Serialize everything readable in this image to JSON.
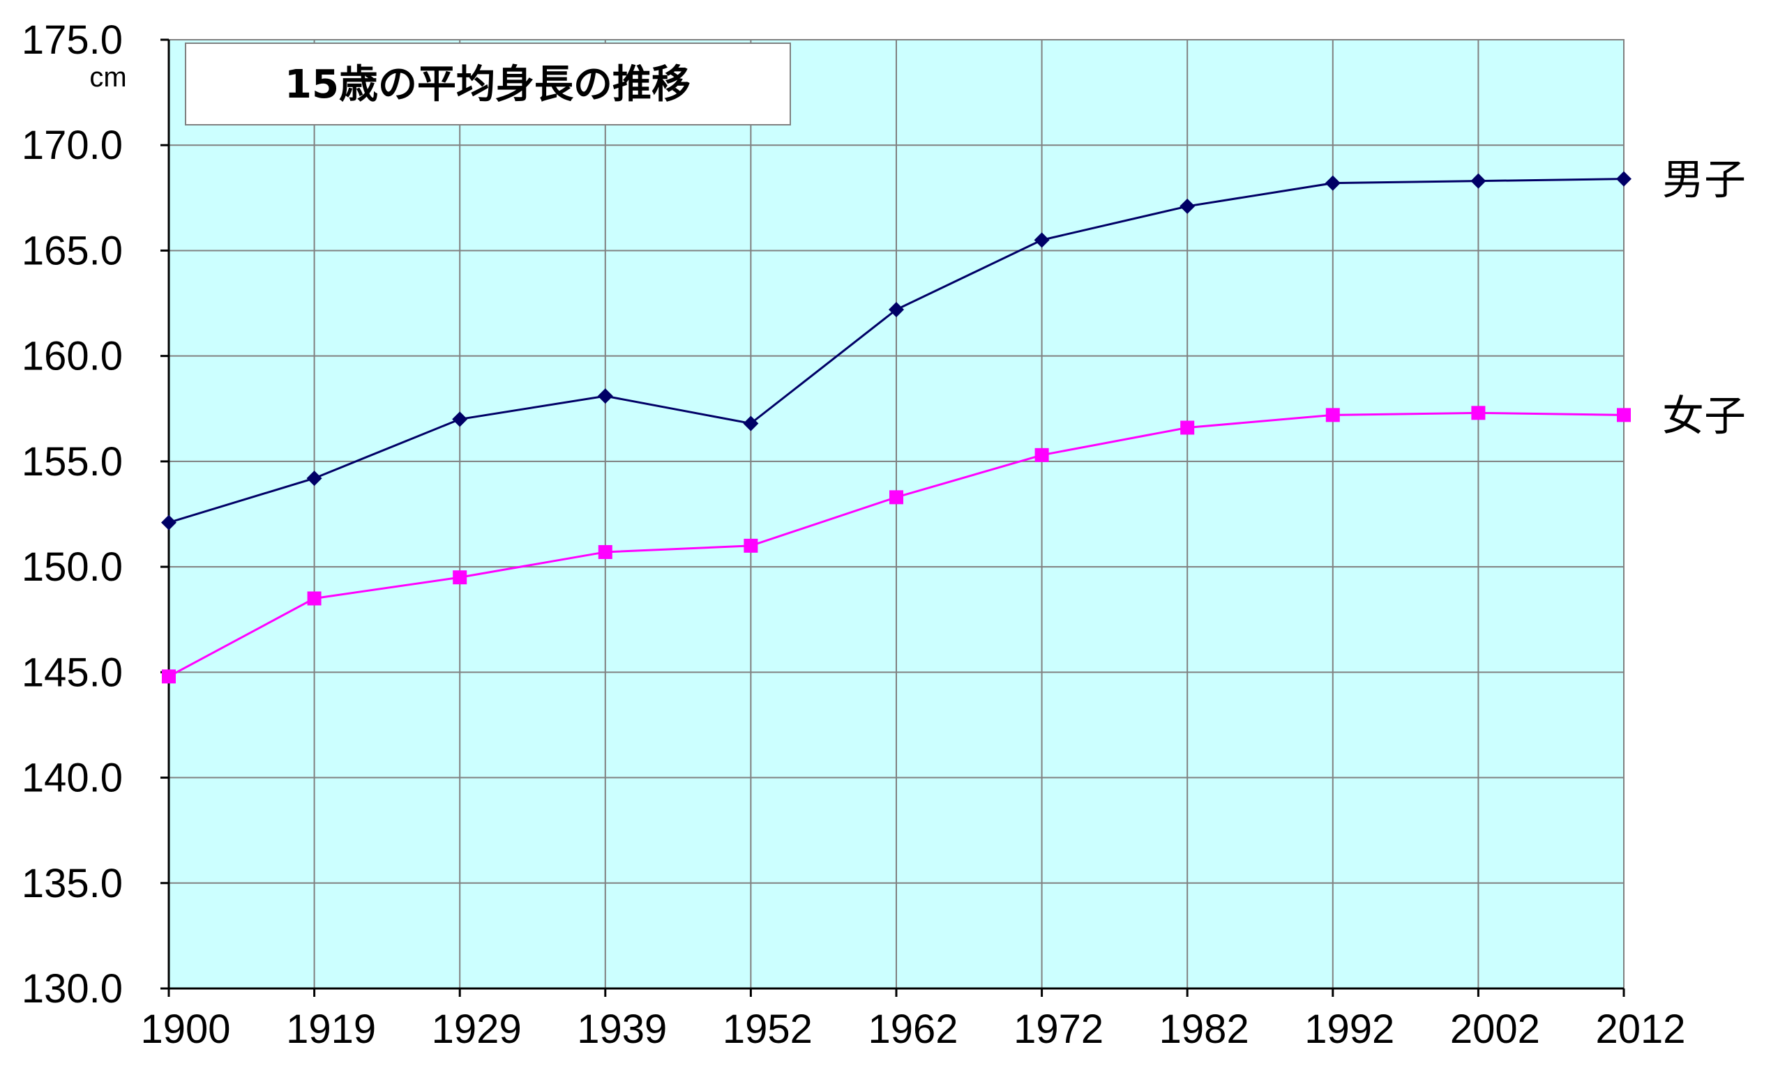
{
  "chart_data": {
    "type": "line",
    "title": "15歳の平均身長の推移",
    "unit": "cm",
    "x": [
      "1900",
      "1919",
      "1929",
      "1939",
      "1952",
      "1962",
      "1972",
      "1982",
      "1992",
      "2002",
      "2012"
    ],
    "series": [
      {
        "name": "男子",
        "color": "#000066",
        "marker": "diamond",
        "values": [
          152.1,
          154.2,
          157.0,
          158.1,
          156.8,
          162.2,
          165.5,
          167.1,
          168.2,
          168.3,
          168.4
        ]
      },
      {
        "name": "女子",
        "color": "#ff00ff",
        "marker": "square",
        "values": [
          144.8,
          148.5,
          149.5,
          150.7,
          151.0,
          153.3,
          155.3,
          156.6,
          157.2,
          157.3,
          157.2
        ]
      }
    ],
    "y_ticks": [
      "130.0",
      "135.0",
      "140.0",
      "145.0",
      "150.0",
      "155.0",
      "160.0",
      "165.0",
      "170.0",
      "175.0"
    ],
    "ylim": [
      130,
      175
    ],
    "grid": true,
    "plot_background": "#ccffff"
  }
}
